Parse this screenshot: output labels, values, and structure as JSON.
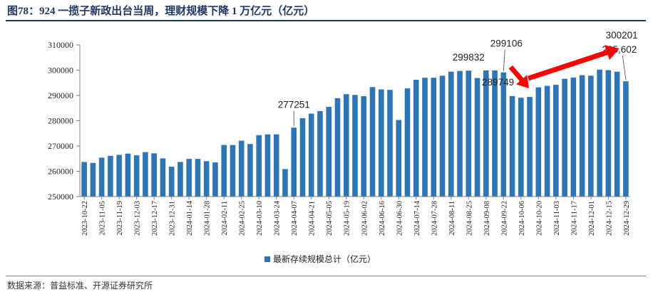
{
  "title": "图78：924 一揽子新政出台当周，理财规模下降 1 万亿元（亿元）",
  "source": "数据来源：普益标准、开源证券研究所",
  "colors": {
    "bar": "#2e75b6",
    "axis": "#808080",
    "arrow": "#ff0000",
    "title": "#1f3864"
  },
  "chart_data": {
    "type": "bar",
    "title": "924 一揽子新政出台当周，理财规模下降 1 万亿元（亿元）",
    "xlabel": "",
    "ylabel": "",
    "ylim": [
      250000,
      310000
    ],
    "yticks": [
      250000,
      260000,
      270000,
      280000,
      290000,
      300000,
      310000
    ],
    "legend": "最新存续规模总计（亿元）",
    "legend_position": "bottom-center",
    "categories": [
      "2023-10-22",
      "2023-10-29",
      "2023-11-05",
      "2023-11-12",
      "2023-11-19",
      "2023-11-26",
      "2023-12-03",
      "2023-12-10",
      "2023-12-17",
      "2023-12-24",
      "2023-12-31",
      "2024-01-07",
      "2024-01-14",
      "2024-01-21",
      "2024-01-28",
      "2024-02-04",
      "2024-02-11",
      "2024-02-18",
      "2024-02-25",
      "2024-03-03",
      "2024-03-10",
      "2024-03-17",
      "2024-03-24",
      "2024-03-31",
      "2024-04-07",
      "2024-04-14",
      "2024-04-21",
      "2024-04-28",
      "2024-05-05",
      "2024-05-12",
      "2024-05-19",
      "2024-05-26",
      "2024-06-02",
      "2024-06-09",
      "2024-06-16",
      "2024-06-23",
      "2024-06-30",
      "2024-07-07",
      "2024-07-14",
      "2024-07-21",
      "2024-07-28",
      "2024-08-04",
      "2024-08-11",
      "2024-08-18",
      "2024-08-25",
      "2024-09-01",
      "2024-09-08",
      "2024-09-15",
      "2024-09-22",
      "2024-09-29",
      "2024-10-06",
      "2024-10-13",
      "2024-10-20",
      "2024-10-27",
      "2024-11-03",
      "2024-11-10",
      "2024-11-17",
      "2024-11-24",
      "2024-12-01",
      "2024-12-08",
      "2024-12-15",
      "2024-12-22",
      "2024-12-29"
    ],
    "xtick_labels": [
      "2023-10-22",
      "2023-11-05",
      "2023-11-19",
      "2023-12-03",
      "2023-12-17",
      "2023-12-31",
      "2024-01-14",
      "2024-01-28",
      "2024-02-11",
      "2024-02-25",
      "2024-03-10",
      "2024-03-24",
      "2024-04-07",
      "2024-04-21",
      "2024-05-05",
      "2024-05-19",
      "2024-06-02",
      "2024-06-16",
      "2024-06-30",
      "2024-07-14",
      "2024-07-28",
      "2024-08-11",
      "2024-08-25",
      "2024-09-08",
      "2024-09-22",
      "2024-10-06",
      "2024-10-20",
      "2024-11-03",
      "2024-11-17",
      "2024-12-01",
      "2024-12-15",
      "2024-12-29"
    ],
    "values": [
      263700,
      263300,
      265400,
      266100,
      266500,
      267000,
      266300,
      267600,
      267100,
      265100,
      261800,
      263700,
      264900,
      264900,
      264000,
      263500,
      270400,
      270400,
      272100,
      270800,
      274300,
      274600,
      274600,
      260900,
      277251,
      281000,
      282800,
      283800,
      285500,
      288900,
      290500,
      290200,
      289700,
      293300,
      292400,
      292200,
      280300,
      292800,
      296200,
      297000,
      297000,
      297800,
      299400,
      299700,
      299832,
      296900,
      299900,
      299900,
      299106,
      289749,
      289100,
      289400,
      293200,
      293800,
      294200,
      296600,
      297100,
      298000,
      297800,
      300201,
      300000,
      299400,
      295602
    ],
    "data_labels": [
      {
        "index": 24,
        "text": "277251"
      },
      {
        "index": 44,
        "text": "299832"
      },
      {
        "index": 48,
        "text": "299106"
      },
      {
        "index": 49,
        "text": "289749"
      },
      {
        "index": 59,
        "text": "300201"
      },
      {
        "index": 62,
        "text": "295,602"
      }
    ],
    "annotations": [
      {
        "type": "arrow",
        "from_index": 48,
        "to_index": 51,
        "direction": "down",
        "color": "#ff0000"
      },
      {
        "type": "arrow",
        "from_index": 51,
        "to_index": 61,
        "direction": "up",
        "color": "#ff0000"
      }
    ]
  }
}
